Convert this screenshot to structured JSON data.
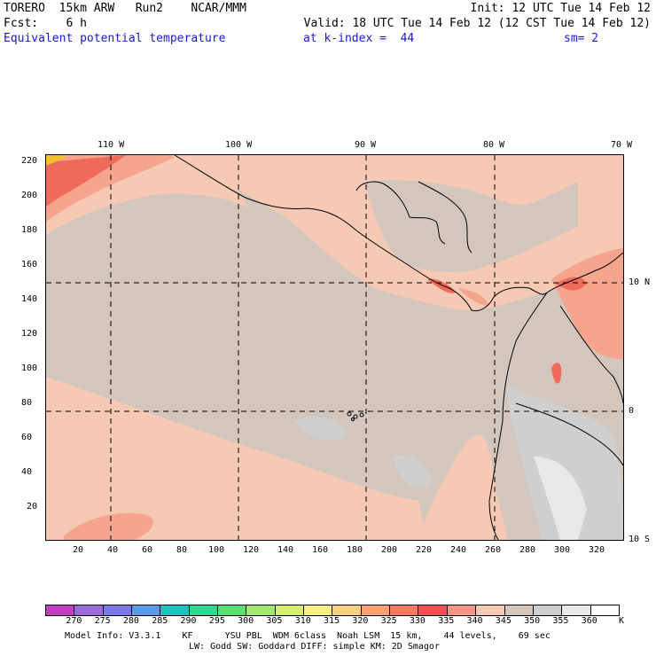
{
  "header": {
    "line1_left": "TORERO  15km ARW   Run2    NCAR/MMM",
    "line1_right": "Init: 12 UTC Tue 14 Feb 12",
    "line2_left": "Fcst:    6 h",
    "line2_right": "Valid: 18 UTC Tue 14 Feb 12 (12 CST Tue 14 Feb 12)",
    "field_name": "Equivalent potential temperature",
    "level_text": "at k-index =  44",
    "smoothing": "sm= 2"
  },
  "map": {
    "lon_labels": [
      "110 W",
      "100 W",
      "90 W",
      "80 W",
      "70 W"
    ],
    "lat_labels": [
      "10 N",
      "0",
      "10 S"
    ],
    "y_ticks": [
      "220",
      "200",
      "180",
      "160",
      "140",
      "120",
      "100",
      "80",
      "60",
      "40",
      "20"
    ],
    "x_ticks": [
      "20",
      "40",
      "60",
      "80",
      "100",
      "120",
      "140",
      "160",
      "180",
      "200",
      "220",
      "240",
      "260",
      "280",
      "300",
      "320"
    ],
    "colors": {
      "background": "#d2c6bd",
      "warm_light": "#f5c9b3",
      "warm_mid": "#f5a58e",
      "warm_strong": "#f06a5a",
      "warm_peak": "#f5c030",
      "cool_gray": "#cfcfcf",
      "cool_light": "#e8e8e8",
      "coast": "#000000",
      "grid": "#000000"
    }
  },
  "colorbar": {
    "labels": [
      "270",
      "275",
      "280",
      "285",
      "290",
      "295",
      "300",
      "305",
      "310",
      "315",
      "320",
      "325",
      "330",
      "335",
      "340",
      "345",
      "350",
      "355",
      "360"
    ],
    "unit": "K",
    "colors": [
      "#c040c0",
      "#9a6ad8",
      "#7a7ae8",
      "#5a9ae8",
      "#20c0c0",
      "#30d890",
      "#58e070",
      "#a0e870",
      "#d8f070",
      "#f8f080",
      "#f8d080",
      "#f8a070",
      "#f87a60",
      "#f05050",
      "#f59585",
      "#f5c9b3",
      "#d2c6bd",
      "#cfcfcf",
      "#e8e8e8",
      "#ffffff"
    ]
  },
  "footer": {
    "line1": "Model Info: V3.3.1    KF      YSU PBL  WDM 6class  Noah LSM  15 km,    44 levels,    69 sec",
    "line2": "LW: Godd SW: Goddard DIFF: simple KM: 2D Smagor"
  }
}
